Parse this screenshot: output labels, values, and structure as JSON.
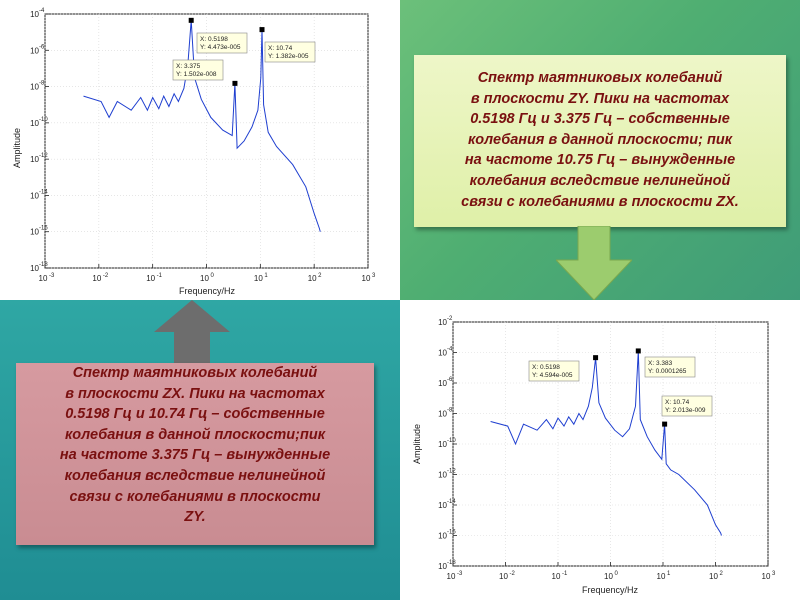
{
  "note_zy": {
    "lines": [
      "Спектр маятниковых колебаний",
      "в плоскости ZY. Пики на частотах",
      "0.5198 Гц и 3.375 Гц – собственные",
      "колебания в данной плоскости; пик",
      "на частоте 10.75 Гц – вынужденные",
      "колебания вследствие нелинейной",
      "связи с колебаниями в плоскости ZX."
    ]
  },
  "note_zx": {
    "lines": [
      "Спектр маятниковых колебаний",
      "в плоскости ZX. Пики на частотах",
      "0.5198 Гц и 10.74 Гц – собственные",
      "колебания в данной плоскости;пик",
      "на частоте 3.375 Гц – вынужденные",
      "колебания вследствие нелинейной",
      "связи с колебаниями в плоскости",
      "ZY."
    ]
  },
  "colors": {
    "curve": "#1f3fd0",
    "note_text": "#7a1010",
    "arrow": "#96c86a",
    "arrow_up": "#6a6a6a"
  },
  "chart_data": [
    {
      "type": "line",
      "log_x": true,
      "log_y": true,
      "xlabel": "Frequency/Hz",
      "ylabel": "Amplitude",
      "xlim": [
        0.001,
        1000
      ],
      "ylim": [
        1e-18,
        0.0001
      ],
      "x_ticks": [
        "10",
        "10",
        "10",
        "10",
        "10",
        "10",
        "10"
      ],
      "x_tick_exps": [
        "-3",
        "-2",
        "-1",
        "0",
        "1",
        "2",
        "3"
      ],
      "y_ticks": [
        "10",
        "10",
        "10",
        "10",
        "10",
        "10",
        "10",
        "10"
      ],
      "y_tick_exps": [
        "-18",
        "-16",
        "-14",
        "-12",
        "-10",
        "-8",
        "-6",
        "-4"
      ],
      "peaks": [
        {
          "x": 0.5198,
          "y": 4.473e-05
        },
        {
          "x": 3.375,
          "y": 1.502e-08
        },
        {
          "x": 10.74,
          "y": 1.382e-05
        }
      ],
      "datatips": [
        {
          "x_text": "X: 0.5198",
          "y_text": "Y: 4.473e-005"
        },
        {
          "x_text": "X: 3.375",
          "y_text": "Y: 1.502e-008"
        },
        {
          "x_text": "X: 10.74",
          "y_text": "Y: 1.382e-005"
        }
      ],
      "series": [
        {
          "values": [
            [
              0.0052,
              3e-09
            ],
            [
              0.011,
              1.5e-09
            ],
            [
              0.0155,
              2e-10
            ],
            [
              0.022,
              1.5e-09
            ],
            [
              0.04,
              5e-10
            ],
            [
              0.06,
              2.5e-09
            ],
            [
              0.08,
              5e-10
            ],
            [
              0.1,
              2.5e-09
            ],
            [
              0.13,
              6e-10
            ],
            [
              0.16,
              3e-09
            ],
            [
              0.2,
              8e-10
            ],
            [
              0.25,
              4e-09
            ],
            [
              0.3,
              1.5e-09
            ],
            [
              0.38,
              8e-09
            ],
            [
              0.45,
              1.5e-07
            ],
            [
              0.5198,
              4.473e-05
            ],
            [
              0.6,
              3e-08
            ],
            [
              0.8,
              2e-09
            ],
            [
              1.2,
              2e-10
            ],
            [
              2.0,
              4e-11
            ],
            [
              3.0,
              2e-11
            ],
            [
              3.375,
              1.502e-08
            ],
            [
              3.7,
              4e-12
            ],
            [
              5.0,
              1e-11
            ],
            [
              7.0,
              6e-11
            ],
            [
              9.0,
              5e-10
            ],
            [
              10.2,
              3e-08
            ],
            [
              10.74,
              1.382e-05
            ],
            [
              11.5,
              1e-09
            ],
            [
              14,
              3e-11
            ],
            [
              20,
              5e-12
            ],
            [
              40,
              5e-13
            ],
            [
              70,
              3e-14
            ],
            [
              100,
              1e-15
            ],
            [
              125,
              1.5e-16
            ],
            [
              130,
              1e-16
            ]
          ]
        }
      ]
    },
    {
      "type": "line",
      "log_x": true,
      "log_y": true,
      "xlabel": "Frequency/Hz",
      "ylabel": "Amplitude",
      "xlim": [
        0.001,
        1000
      ],
      "ylim": [
        1e-18,
        0.01
      ],
      "x_ticks": [
        "10",
        "10",
        "10",
        "10",
        "10",
        "10",
        "10"
      ],
      "x_tick_exps": [
        "-3",
        "-2",
        "-1",
        "0",
        "1",
        "2",
        "3"
      ],
      "y_ticks": [
        "10",
        "10",
        "10",
        "10",
        "10",
        "10",
        "10",
        "10",
        "10"
      ],
      "y_tick_exps": [
        "-18",
        "-16",
        "-14",
        "-12",
        "-10",
        "-8",
        "-6",
        "-4",
        "-2"
      ],
      "peaks": [
        {
          "x": 0.5198,
          "y": 4.594e-05
        },
        {
          "x": 3.383,
          "y": 0.0001265
        },
        {
          "x": 10.74,
          "y": 2.013e-09
        }
      ],
      "datatips": [
        {
          "x_text": "X: 0.5198",
          "y_text": "Y: 4.594e-005"
        },
        {
          "x_text": "X: 3.383",
          "y_text": "Y: 0.0001265"
        },
        {
          "x_text": "X: 10.74",
          "y_text": "Y: 2.013e-009"
        }
      ],
      "series": [
        {
          "values": [
            [
              0.0052,
              3e-09
            ],
            [
              0.011,
              1.5e-09
            ],
            [
              0.0155,
              1e-10
            ],
            [
              0.022,
              2e-09
            ],
            [
              0.04,
              8e-10
            ],
            [
              0.06,
              4e-09
            ],
            [
              0.08,
              1e-09
            ],
            [
              0.1,
              5e-09
            ],
            [
              0.13,
              1.5e-09
            ],
            [
              0.16,
              6e-09
            ],
            [
              0.2,
              2e-09
            ],
            [
              0.25,
              1e-08
            ],
            [
              0.3,
              4e-09
            ],
            [
              0.38,
              3e-08
            ],
            [
              0.45,
              5e-07
            ],
            [
              0.5198,
              4.594e-05
            ],
            [
              0.6,
              5e-08
            ],
            [
              0.8,
              5e-09
            ],
            [
              1.2,
              8e-10
            ],
            [
              1.7,
              3e-10
            ],
            [
              2.3,
              1e-09
            ],
            [
              3.0,
              3e-08
            ],
            [
              3.383,
              0.0001265
            ],
            [
              3.7,
              4e-09
            ],
            [
              5.0,
              3e-10
            ],
            [
              7.0,
              4e-11
            ],
            [
              9.5,
              1e-11
            ],
            [
              10.74,
              2.013e-09
            ],
            [
              11.5,
              5e-12
            ],
            [
              14,
              2e-12
            ],
            [
              20,
              1e-12
            ],
            [
              40,
              1e-13
            ],
            [
              70,
              1e-14
            ],
            [
              100,
              5e-16
            ],
            [
              125,
              1.5e-16
            ],
            [
              130,
              1e-16
            ]
          ]
        }
      ]
    }
  ]
}
